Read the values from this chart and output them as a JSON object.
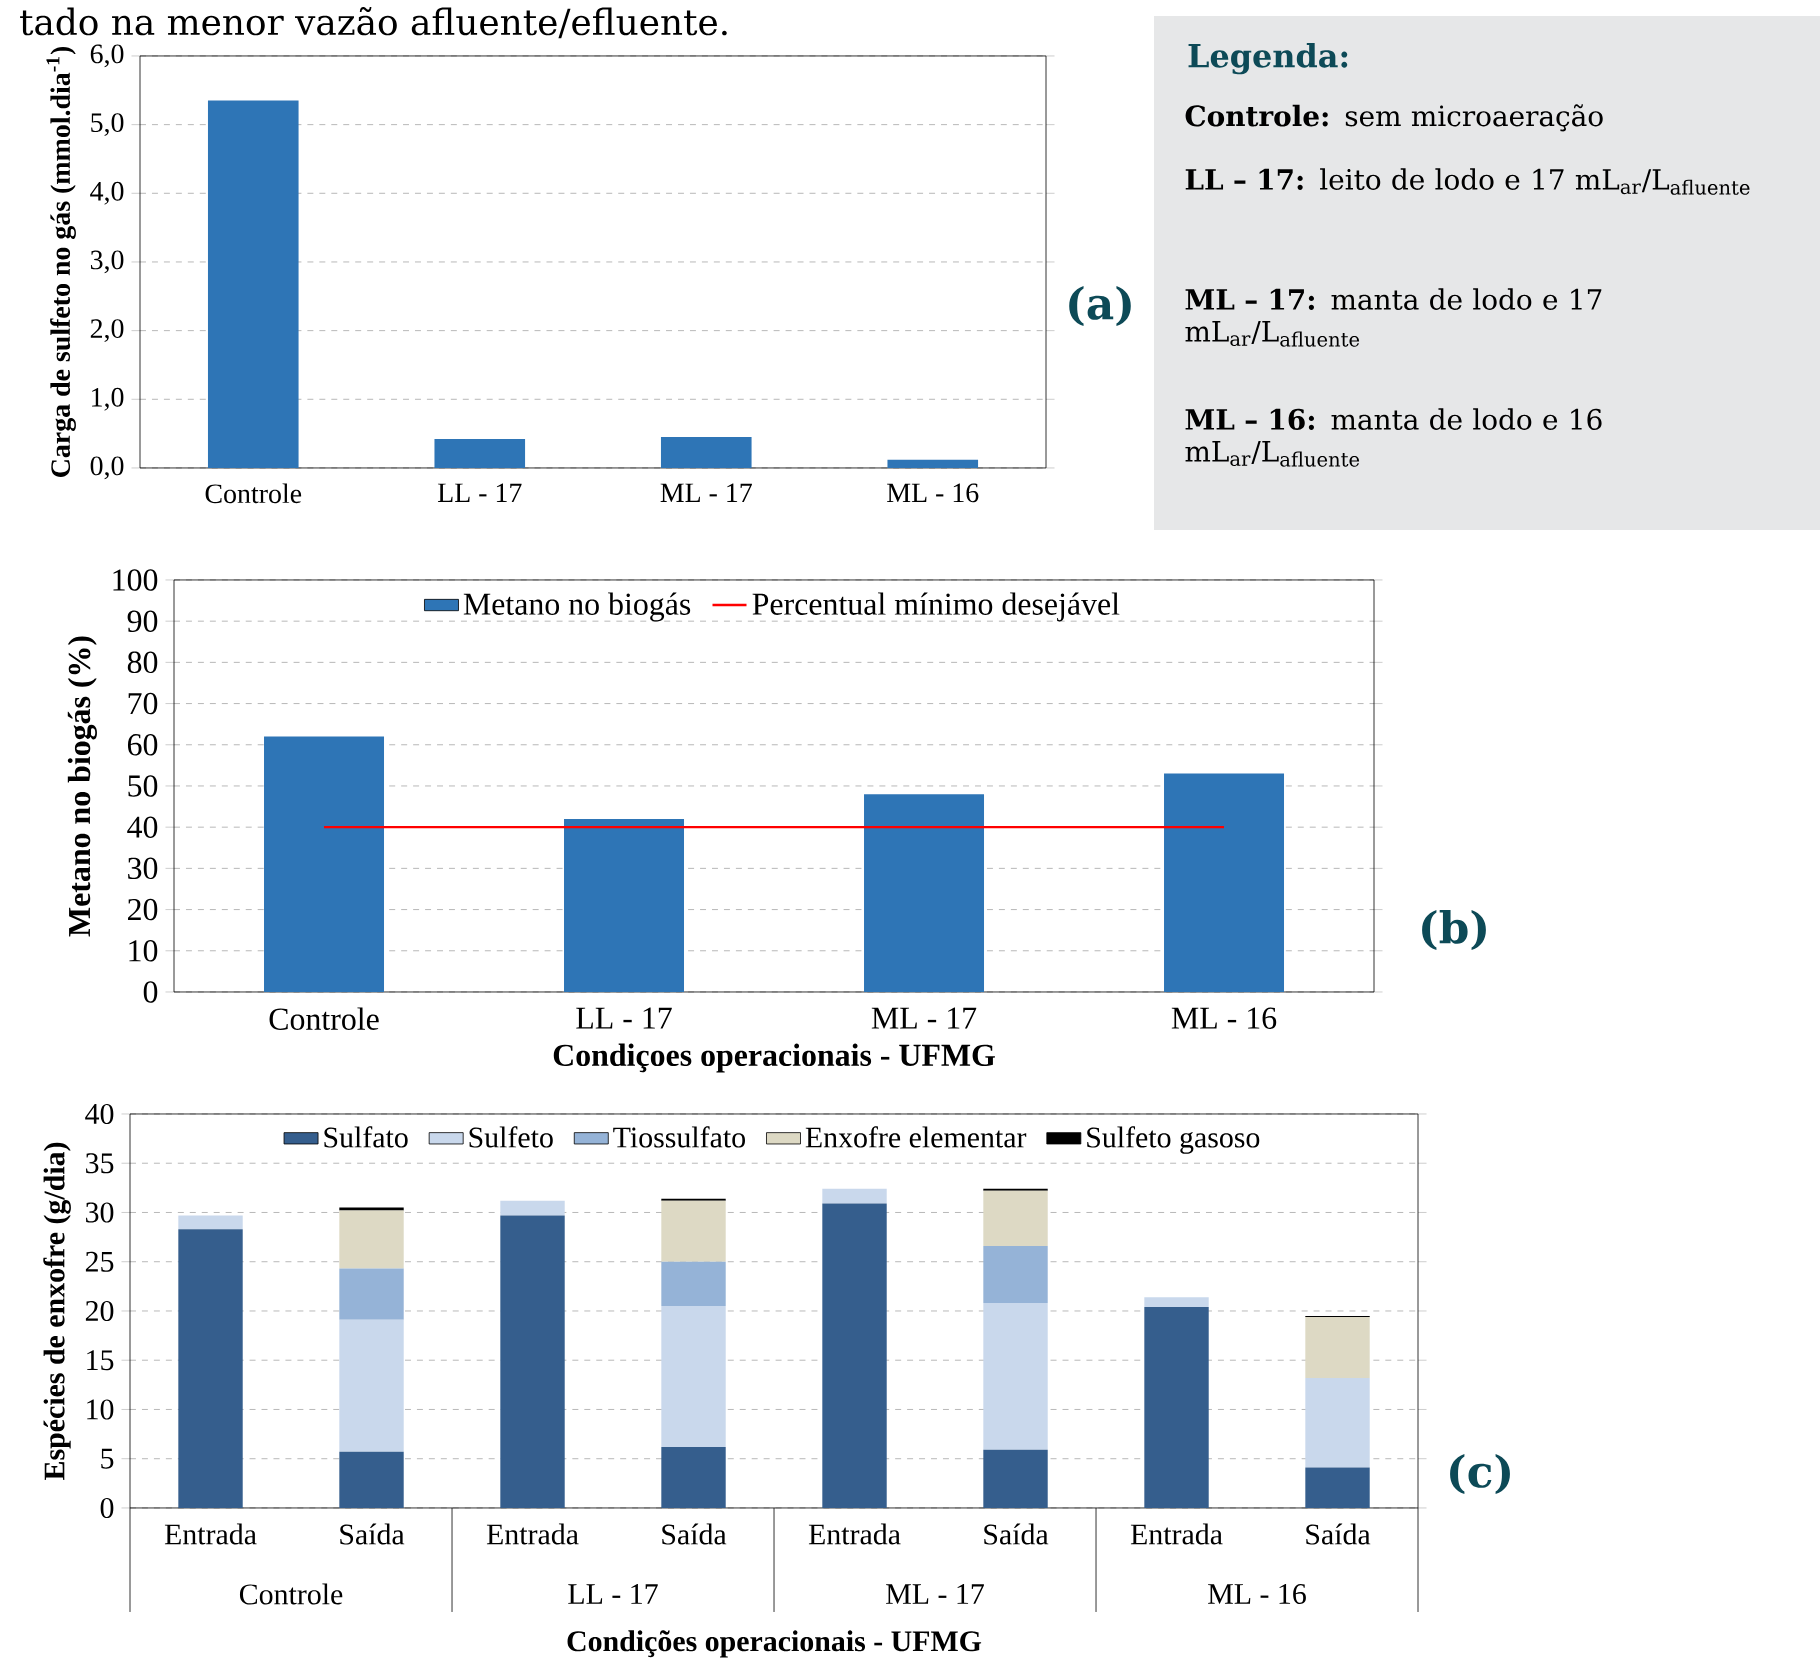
{
  "chart_data": [
    {
      "type": "bar",
      "annotations": [
        "tado na menor vazão afluente/efluente.",
        "(a)"
      ],
      "ylabel": "Carga de sulfeto no gás  (mmol.dia$^{-1}$)",
      "categories": [
        "Controle",
        "LL - 17",
        "ML - 17",
        "ML - 16"
      ],
      "values": [
        5.35,
        0.42,
        0.45,
        0.12
      ],
      "color": "#2e75b6",
      "ylim": [
        0,
        6
      ],
      "yticks": [
        {
          "value": 0,
          "label": "0,0"
        },
        {
          "value": 1,
          "label": "1,0"
        },
        {
          "value": 2,
          "label": "2,0"
        },
        {
          "value": 3,
          "label": "3,0"
        },
        {
          "value": 4,
          "label": "4,0"
        },
        {
          "value": 5,
          "label": "5,0"
        },
        {
          "value": 6,
          "label": "6,0"
        }
      ],
      "grid": "y"
    },
    {
      "type": "bar",
      "ylabel": "Metano no biogás (%)",
      "xlabel": "Condiçoes operacionais - UFMG",
      "categories": [
        "Controle",
        "LL - 17",
        "ML - 17",
        "ML - 16"
      ],
      "series": [
        {
          "name": "Metano no biogás",
          "color": "#2e75b6",
          "values": [
            62,
            42,
            48,
            53
          ]
        }
      ],
      "ref_lines": [
        {
          "axis": "y",
          "value": 40,
          "label": "Percentual mínimo desejável",
          "color": "#ff0000"
        }
      ],
      "ylim": [
        0,
        100
      ],
      "yticks": [
        0,
        10,
        20,
        30,
        40,
        50,
        60,
        70,
        80,
        90,
        100
      ],
      "grid": "y",
      "legend": "top",
      "annotations": [
        "(b)"
      ]
    },
    {
      "type": "bar",
      "stacked": true,
      "ylabel": "Espécies de enxofre (g/dia)",
      "xlabel": "Condições operacionais - UFMG",
      "categories": [
        "Entrada",
        "Saída",
        "Entrada",
        "Saída",
        "Entrada",
        "Saída",
        "Entrada",
        "Saída"
      ],
      "series": [
        {
          "name": "Sulfato",
          "color": "#355e8d",
          "values": [
            28.3,
            5.7,
            29.7,
            6.2,
            30.9,
            5.9,
            20.4,
            4.1
          ]
        },
        {
          "name": "Sulfeto",
          "color": "#c9d8ec",
          "values": [
            1.4,
            13.4,
            1.5,
            14.3,
            1.5,
            14.9,
            1.0,
            9.1
          ]
        },
        {
          "name": "Tiossulfato",
          "color": "#95b3d7",
          "values": [
            0,
            5.2,
            0,
            4.5,
            0,
            5.8,
            0,
            0
          ]
        },
        {
          "name": "Enxofre elementar",
          "color": "#ddd9c4",
          "values": [
            0,
            5.9,
            0,
            6.2,
            0,
            5.6,
            0,
            6.2
          ]
        },
        {
          "name": "Sulfeto gasoso",
          "color": "#000000",
          "values": [
            0,
            0.3,
            0,
            0.2,
            0,
            0.2,
            0,
            0.1
          ]
        }
      ],
      "ylim": [
        0,
        40
      ],
      "yticks": [
        0,
        5,
        10,
        15,
        20,
        25,
        30,
        35,
        40
      ],
      "grid": "y",
      "legend": "top",
      "annotations": [
        "(c)",
        "Controle",
        "LL - 17",
        "ML - 17",
        "ML - 16"
      ]
    },
    {
      "type": "other",
      "title": "Legenda:",
      "annotations": [
        "**Controle:** sem microaeração",
        "**LL – 17:** leito de lodo e 17 mL$_{ar}$/L$_{afluente}$",
        "**ML – 17:** manta de lodo e 17 mL$_{ar}$/L$_{afluente}$",
        "**ML – 16:** manta de lodo e 16 mL$_{ar}$/L$_{afluente}$"
      ]
    }
  ]
}
